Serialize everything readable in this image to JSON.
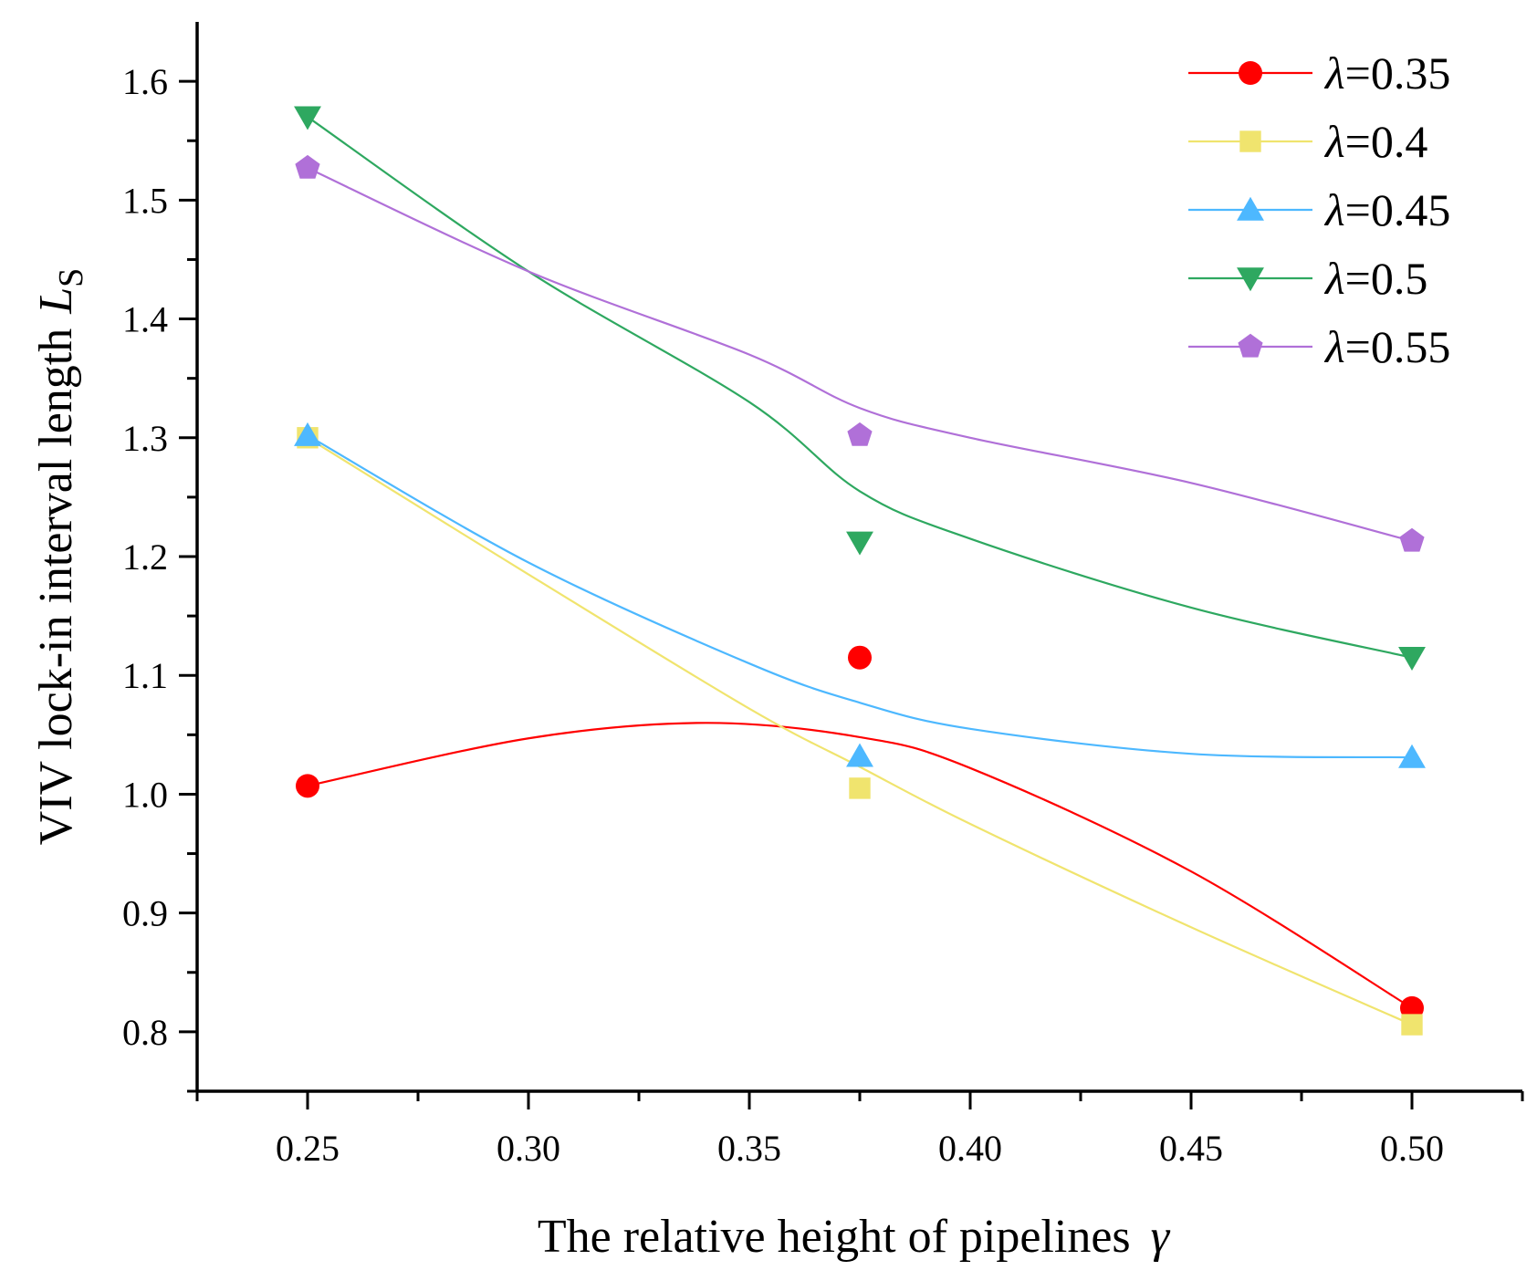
{
  "chart_data": {
    "type": "scatter",
    "title": "",
    "xlabel": {
      "text": "The relative height of pipelines",
      "symbol": "γ"
    },
    "ylabel": {
      "text": "VIV lock-in interval length",
      "symbol": "L",
      "subscript": "S"
    },
    "xlim": [
      0.225,
      0.525
    ],
    "ylim": [
      0.75,
      1.65
    ],
    "xticks": [
      0.25,
      0.3,
      0.35,
      0.4,
      0.45,
      0.5
    ],
    "xtick_labels": [
      "0.25",
      "0.30",
      "0.35",
      "0.40",
      "0.45",
      "0.50"
    ],
    "yticks": [
      0.8,
      0.9,
      1.0,
      1.1,
      1.2,
      1.3,
      1.4,
      1.5,
      1.6
    ],
    "ytick_labels": [
      "0.8",
      "0.9",
      "1.0",
      "1.1",
      "1.2",
      "1.3",
      "1.4",
      "1.5",
      "1.6"
    ],
    "grid": false,
    "legend_position": "top-right",
    "series": [
      {
        "name": "λ=0.35",
        "symbol": "λ",
        "value_label": "=0.35",
        "color": "#ff0000",
        "marker": "circle",
        "x": [
          0.25,
          0.375,
          0.5
        ],
        "y": [
          1.007,
          1.115,
          0.82
        ],
        "fit": [
          [
            0.25,
            1.007
          ],
          [
            0.3,
            1.047
          ],
          [
            0.34,
            1.06
          ],
          [
            0.375,
            1.048
          ],
          [
            0.4,
            1.022
          ],
          [
            0.45,
            0.935
          ],
          [
            0.5,
            0.82
          ]
        ]
      },
      {
        "name": "λ=0.4",
        "symbol": "λ",
        "value_label": "=0.4",
        "color": "#f0e46e",
        "marker": "square",
        "x": [
          0.25,
          0.375,
          0.5
        ],
        "y": [
          1.3,
          1.005,
          0.806
        ],
        "fit": [
          [
            0.25,
            1.3
          ],
          [
            0.3,
            1.185
          ],
          [
            0.35,
            1.072
          ],
          [
            0.375,
            1.023
          ],
          [
            0.4,
            0.975
          ],
          [
            0.45,
            0.888
          ],
          [
            0.5,
            0.806
          ]
        ]
      },
      {
        "name": "λ=0.45",
        "symbol": "λ",
        "value_label": "=0.45",
        "color": "#4db8ff",
        "marker": "triangle-up",
        "x": [
          0.25,
          0.375,
          0.5
        ],
        "y": [
          1.302,
          1.032,
          1.031
        ],
        "fit": [
          [
            0.25,
            1.302
          ],
          [
            0.3,
            1.195
          ],
          [
            0.35,
            1.11
          ],
          [
            0.375,
            1.077
          ],
          [
            0.4,
            1.055
          ],
          [
            0.45,
            1.034
          ],
          [
            0.5,
            1.031
          ]
        ]
      },
      {
        "name": "λ=0.5",
        "symbol": "λ",
        "value_label": "=0.5",
        "color": "#2ea860",
        "marker": "triangle-down",
        "x": [
          0.25,
          0.375,
          0.5
        ],
        "y": [
          1.57,
          1.212,
          1.115
        ],
        "fit": [
          [
            0.25,
            1.57
          ],
          [
            0.3,
            1.44
          ],
          [
            0.35,
            1.33
          ],
          [
            0.375,
            1.255
          ],
          [
            0.4,
            1.215
          ],
          [
            0.45,
            1.157
          ],
          [
            0.5,
            1.115
          ]
        ]
      },
      {
        "name": "λ=0.55",
        "symbol": "λ",
        "value_label": "=0.55",
        "color": "#b070d8",
        "marker": "pentagon",
        "x": [
          0.25,
          0.375,
          0.5
        ],
        "y": [
          1.527,
          1.302,
          1.213
        ],
        "fit": [
          [
            0.25,
            1.527
          ],
          [
            0.3,
            1.44
          ],
          [
            0.35,
            1.37
          ],
          [
            0.375,
            1.325
          ],
          [
            0.4,
            1.3
          ],
          [
            0.45,
            1.262
          ],
          [
            0.5,
            1.213
          ]
        ]
      }
    ]
  }
}
